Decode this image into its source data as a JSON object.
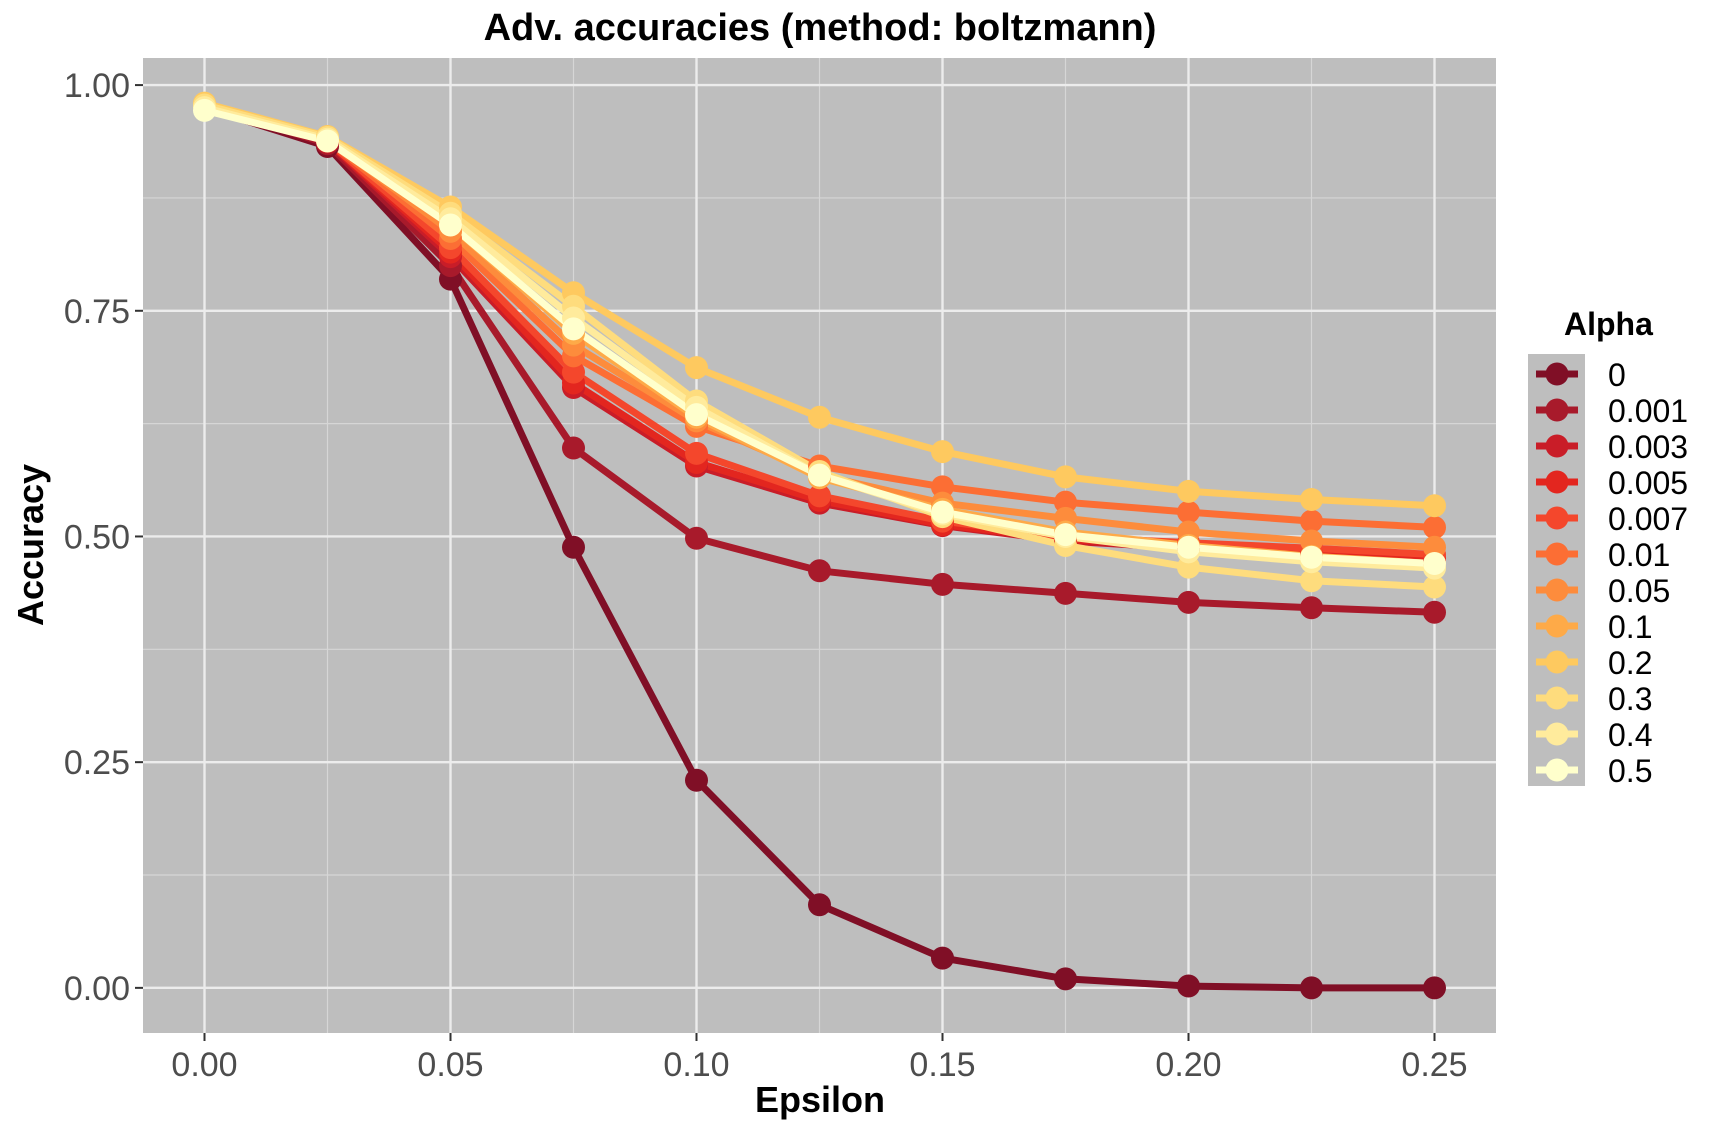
{
  "chart_data": {
    "type": "line",
    "title": "Adv. accuracies (method: boltzmann)",
    "xlabel": "Epsilon",
    "ylabel": "Accuracy",
    "xlim": [
      -0.0125,
      0.2625
    ],
    "ylim": [
      -0.05,
      1.03
    ],
    "x_ticks": [
      "0.00",
      "0.05",
      "0.10",
      "0.15",
      "0.20",
      "0.25"
    ],
    "y_ticks": [
      "0.00",
      "0.25",
      "0.50",
      "0.75",
      "1.00"
    ],
    "grid": true,
    "legend_title": "Alpha",
    "legend_position": "right",
    "x": [
      0.0,
      0.025,
      0.05,
      0.075,
      0.1,
      0.125,
      0.15,
      0.175,
      0.2,
      0.225,
      0.25
    ],
    "series": [
      {
        "name": "0",
        "color": "#800f26",
        "values": [
          0.975,
          0.932,
          0.785,
          0.488,
          0.23,
          0.092,
          0.033,
          0.01,
          0.002,
          0.0,
          0.0
        ]
      },
      {
        "name": "0.001",
        "color": "#a81a2b",
        "values": [
          0.977,
          0.935,
          0.8,
          0.598,
          0.498,
          0.462,
          0.447,
          0.437,
          0.427,
          0.421,
          0.416
        ]
      },
      {
        "name": "0.003",
        "color": "#c91d28",
        "values": [
          0.978,
          0.937,
          0.81,
          0.665,
          0.578,
          0.537,
          0.512,
          0.495,
          0.487,
          0.479,
          0.474
        ]
      },
      {
        "name": "0.005",
        "color": "#e3261f",
        "values": [
          0.978,
          0.938,
          0.815,
          0.67,
          0.582,
          0.54,
          0.513,
          0.497,
          0.49,
          0.483,
          0.477
        ]
      },
      {
        "name": "0.007",
        "color": "#f4472c",
        "values": [
          0.978,
          0.938,
          0.82,
          0.682,
          0.592,
          0.545,
          0.517,
          0.5,
          0.493,
          0.487,
          0.48
        ]
      },
      {
        "name": "0.01",
        "color": "#fc6e34",
        "values": [
          0.978,
          0.939,
          0.83,
          0.7,
          0.622,
          0.578,
          0.555,
          0.538,
          0.527,
          0.517,
          0.51
        ]
      },
      {
        "name": "0.05",
        "color": "#fd8c3c",
        "values": [
          0.978,
          0.94,
          0.838,
          0.712,
          0.628,
          0.568,
          0.537,
          0.52,
          0.505,
          0.495,
          0.488
        ]
      },
      {
        "name": "0.1",
        "color": "#feaa48",
        "values": [
          0.979,
          0.941,
          0.845,
          0.725,
          0.632,
          0.565,
          0.53,
          0.505,
          0.49,
          0.478,
          0.47
        ]
      },
      {
        "name": "0.2",
        "color": "#fec95f",
        "values": [
          0.98,
          0.943,
          0.865,
          0.77,
          0.687,
          0.632,
          0.594,
          0.566,
          0.55,
          0.541,
          0.534
        ]
      },
      {
        "name": "0.3",
        "color": "#fedc7d",
        "values": [
          0.978,
          0.942,
          0.858,
          0.755,
          0.65,
          0.572,
          0.522,
          0.49,
          0.466,
          0.451,
          0.444
        ]
      },
      {
        "name": "0.4",
        "color": "#ffeb9c",
        "values": [
          0.975,
          0.94,
          0.852,
          0.742,
          0.643,
          0.568,
          0.525,
          0.5,
          0.483,
          0.472,
          0.465
        ]
      },
      {
        "name": "0.5",
        "color": "#ffffcc",
        "values": [
          0.972,
          0.938,
          0.845,
          0.73,
          0.635,
          0.568,
          0.527,
          0.502,
          0.488,
          0.477,
          0.47
        ]
      }
    ]
  }
}
